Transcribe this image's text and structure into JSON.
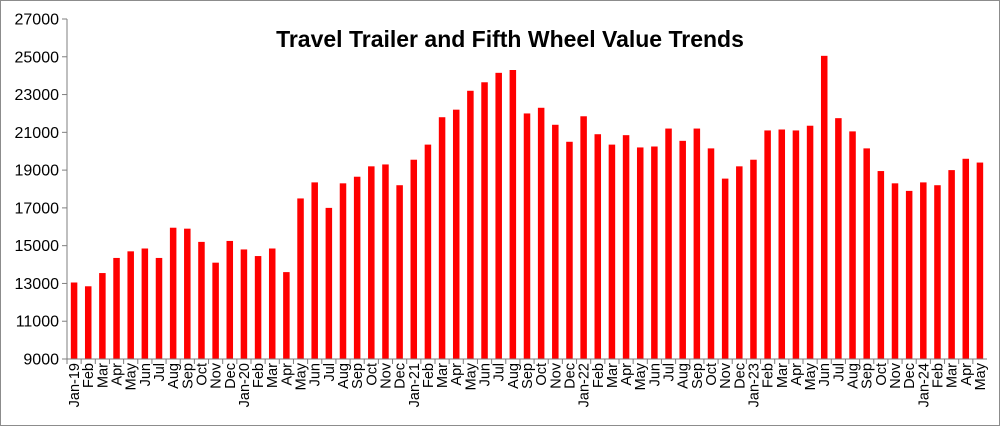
{
  "chart_data": {
    "type": "bar",
    "title": "Travel Trailer and Fifth Wheel Value Trends",
    "xlabel": "",
    "ylabel": "",
    "ylim": [
      9000,
      27000
    ],
    "yticks": [
      9000,
      11000,
      13000,
      15000,
      17000,
      19000,
      21000,
      23000,
      25000,
      27000
    ],
    "grid": false,
    "legend": "none",
    "bar_color": "#ff0000",
    "categories": [
      "Jan-19",
      "Feb",
      "Mar",
      "Apr",
      "May",
      "Jun",
      "Jul",
      "Aug",
      "Sep",
      "Oct",
      "Nov",
      "Dec",
      "Jan-20",
      "Feb",
      "Mar",
      "Apr",
      "May",
      "Jun",
      "Jul",
      "Aug",
      "Sep",
      "Oct",
      "Nov",
      "Dec",
      "Jan-21",
      "Feb",
      "Mar",
      "Apr",
      "May",
      "Jun",
      "Jul",
      "Aug",
      "Sep",
      "Oct",
      "Nov",
      "Dec",
      "Jan-22",
      "Feb",
      "Mar",
      "Apr",
      "May",
      "Jun",
      "Jul",
      "Aug",
      "Sep",
      "Oct",
      "Nov",
      "Dec",
      "Jan-23",
      "Feb",
      "Mar",
      "Apr",
      "May",
      "Jun",
      "Jul",
      "Aug",
      "Sep",
      "Oct",
      "Nov",
      "Dec",
      "Jan-24",
      "Feb",
      "Mar",
      "Apr",
      "May"
    ],
    "values": [
      13050,
      12850,
      13550,
      14350,
      14700,
      14850,
      14350,
      15950,
      15900,
      15200,
      14100,
      15250,
      14800,
      14450,
      14850,
      13600,
      17500,
      18350,
      17000,
      18300,
      18650,
      19200,
      19300,
      18200,
      19550,
      20350,
      21800,
      22200,
      23200,
      23650,
      24150,
      24300,
      22000,
      22300,
      21400,
      20500,
      21850,
      20900,
      20350,
      20850,
      20200,
      20250,
      21200,
      20550,
      21200,
      20150,
      18550,
      19200,
      19550,
      21100,
      21150,
      21100,
      21350,
      25050,
      21750,
      21050,
      20150,
      18950,
      18300,
      17900,
      18350,
      18200,
      19000,
      19600,
      19400
    ]
  }
}
